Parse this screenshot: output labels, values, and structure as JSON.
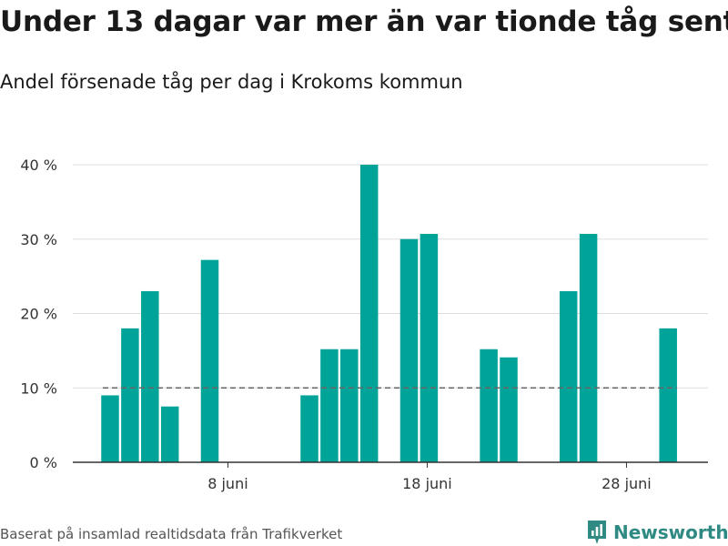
{
  "title": "Under 13 dagar var mer än var tionde tåg sent",
  "subtitle": "Andel försenade tåg per dag i Krokoms kommun",
  "footer": {
    "source": "Baserat på insamlad realtidsdata från Trafikverket",
    "brand": "Newsworthy",
    "brand_icon": "newsworthy-logo-icon"
  },
  "colors": {
    "bar": "#00a398",
    "grid": "#dddddd",
    "axis": "#333333",
    "reference_line": "#666666",
    "brand": "#2f8a84"
  },
  "chart_data": {
    "type": "bar",
    "x_unit": "day of June",
    "x": [
      1,
      2,
      3,
      4,
      5,
      6,
      7,
      8,
      9,
      10,
      11,
      12,
      13,
      14,
      15,
      16,
      17,
      18,
      19,
      20,
      21,
      22,
      23,
      24,
      25,
      26,
      27,
      28,
      29,
      30,
      31
    ],
    "values": [
      0,
      9,
      18,
      23,
      7.5,
      0,
      27.2,
      0,
      0,
      0,
      0,
      9,
      15.2,
      15.2,
      40,
      0,
      30,
      30.7,
      0,
      0,
      15.2,
      14.1,
      0,
      0,
      23,
      30.7,
      0,
      0,
      0,
      18,
      0
    ],
    "ylim": [
      0,
      40
    ],
    "y_ticks": [
      0,
      10,
      20,
      30,
      40
    ],
    "y_tick_labels": [
      "0 %",
      "10 %",
      "20 %",
      "30 %",
      "40 %"
    ],
    "x_ticks": [
      8,
      18,
      28
    ],
    "x_tick_labels": [
      "8 juni",
      "18 juni",
      "28 juni"
    ],
    "reference_line": {
      "value": 10,
      "style": "dashed"
    },
    "grid": true,
    "legend": false,
    "xlabel": "",
    "ylabel": ""
  }
}
